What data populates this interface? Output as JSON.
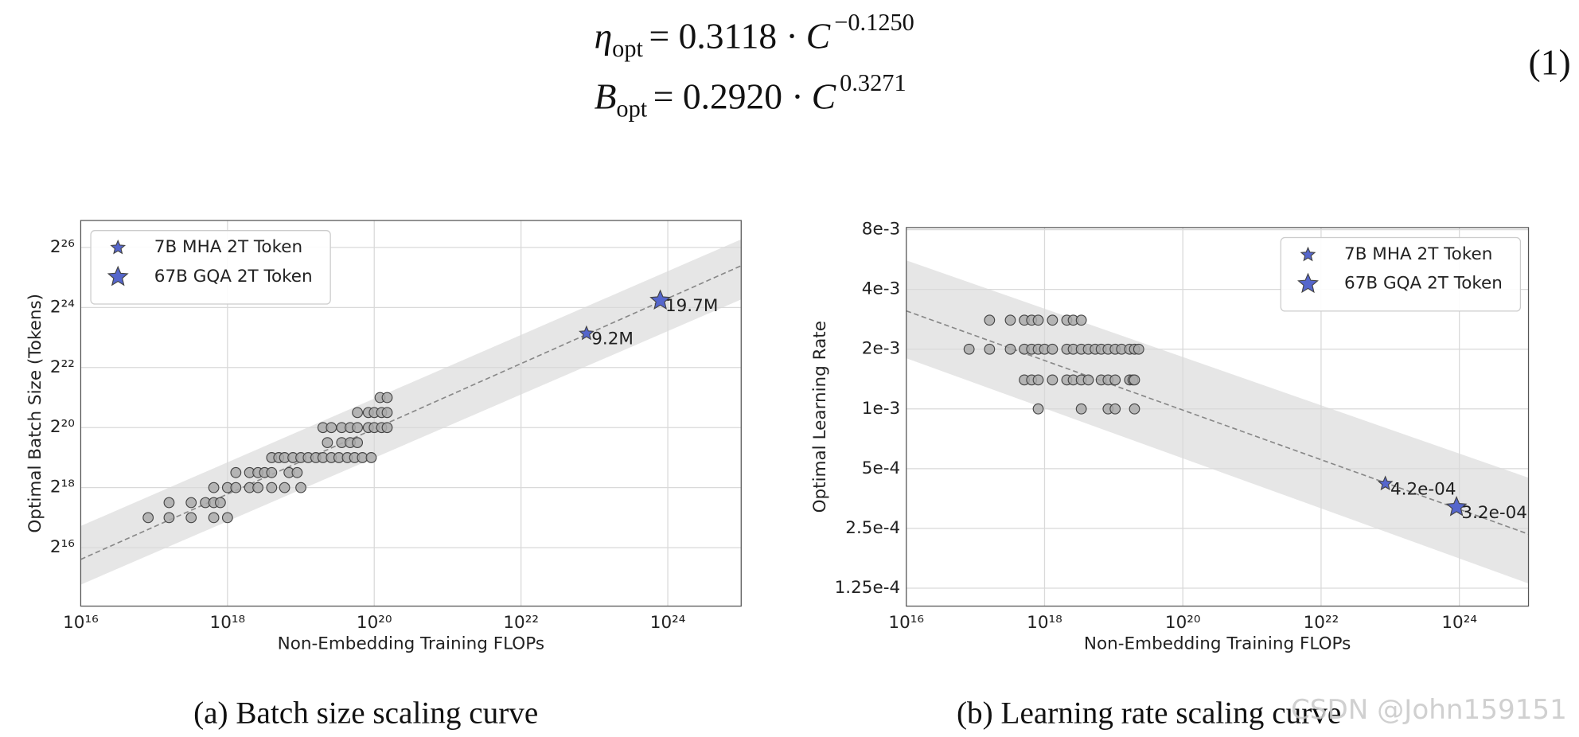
{
  "equations": [
    {
      "lhs": "η",
      "sub": "opt",
      "coef": "= 0.3118 ·",
      "var": "C",
      "exp": "−0.1250"
    },
    {
      "lhs": "B",
      "sub": "opt",
      "coef": "= 0.2920 ·",
      "var": "C",
      "exp": "0.3271"
    }
  ],
  "equation_number": "(1)",
  "chart_data": [
    {
      "type": "scatter",
      "xlabel": "Non-Embedding Training FLOPs",
      "ylabel": "Optimal Batch Size (Tokens)",
      "xscale": "log",
      "yscale": "log",
      "grid": true,
      "legend": "upper left",
      "xlim": [
        1e+16,
        1e+25
      ],
      "ylim": [
        17000,
        125000000
      ],
      "xticks": [
        {
          "value": 1e+16,
          "label": "10¹⁶"
        },
        {
          "value": 1e+18,
          "label": "10¹⁸"
        },
        {
          "value": 1e+20,
          "label": "10²⁰"
        },
        {
          "value": 1e+22,
          "label": "10²²"
        },
        {
          "value": 1e+24,
          "label": "10²⁴"
        }
      ],
      "yticks": [
        {
          "value": 65536,
          "label": "2¹⁶"
        },
        {
          "value": 262144,
          "label": "2¹⁸"
        },
        {
          "value": 1048576,
          "label": "2²⁰"
        },
        {
          "value": 4194304,
          "label": "2²²"
        },
        {
          "value": 16777216,
          "label": "2²⁴"
        },
        {
          "value": 67108864,
          "label": "2²⁶"
        }
      ],
      "band": {
        "color": "#e6e6e6",
        "x": [
          1e+16,
          1e+25
        ],
        "upper": [
          108000,
          80900000
        ],
        "lower": [
          27900,
          20200000
        ]
      },
      "fit": {
        "color": "#888888",
        "x": [
          1e+16,
          1e+25
        ],
        "y": [
          50000,
          44000000
        ]
      },
      "series": [
        {
          "color": "#aaaaaa",
          "marker": "circle",
          "marker_size": 5,
          "x": [
            8.3e+16,
            1.6e+17,
            3.2e+17,
            6.5e+17,
            1e+18,
            1.6e+17,
            3.2e+17,
            5e+17,
            6.5e+17,
            8e+17,
            6.5e+17,
            1e+18,
            1.3e+18,
            2e+18,
            2.6e+18,
            4e+18,
            6e+18,
            1e+19,
            1.3e+18,
            2e+18,
            2.6e+18,
            3.2e+18,
            4e+18,
            6.9e+18,
            8.9e+18,
            4e+18,
            5e+18,
            6e+18,
            7.8e+18,
            1e+19,
            1.26e+19,
            1.6e+19,
            2e+19,
            2.6e+19,
            3.3e+19,
            4.3e+19,
            5.4e+19,
            6.9e+19,
            9.1e+19,
            2.3e+19,
            3.6e+19,
            4.7e+19,
            5.9e+19,
            2e+19,
            2.6e+19,
            3.6e+19,
            4.7e+19,
            5.9e+19,
            8.3e+19,
            1e+20,
            1.26e+20,
            1.5e+20,
            5.9e+19,
            8.3e+19,
            1e+20,
            1.26e+20,
            1.5e+20,
            1.2e+20,
            1.5e+20
          ],
          "y": [
            131072,
            131072,
            131072,
            131072,
            131072,
            185364,
            185364,
            185364,
            185364,
            185364,
            262144,
            262144,
            262144,
            262144,
            262144,
            262144,
            262144,
            262144,
            370728,
            370728,
            370728,
            370728,
            370728,
            370728,
            370728,
            524288,
            524288,
            524288,
            524288,
            524288,
            524288,
            524288,
            524288,
            524288,
            524288,
            524288,
            524288,
            524288,
            524288,
            741455,
            741455,
            741455,
            741455,
            1048576,
            1048576,
            1048576,
            1048576,
            1048576,
            1048576,
            1048576,
            1048576,
            1048576,
            1482910,
            1482910,
            1482910,
            1482910,
            1482910,
            2097152,
            2097152
          ]
        },
        {
          "name": "7B MHA 2T Token",
          "color": "#5566cc",
          "marker": "star",
          "marker_size": 7,
          "x": [
            7.8e+22
          ],
          "y": [
            9200000
          ],
          "value_labels": [
            "9.2M"
          ]
        },
        {
          "name": "67B GQA 2T Token",
          "color": "#5566cc",
          "marker": "star",
          "marker_size": 10,
          "x": [
            7.9e+23
          ],
          "y": [
            19700000
          ],
          "value_labels": [
            "19.7M"
          ]
        }
      ]
    },
    {
      "type": "scatter",
      "xlabel": "Non-Embedding Training FLOPs",
      "ylabel": "Optimal Learning Rate",
      "xscale": "log",
      "yscale": "log",
      "grid": true,
      "legend": "upper right",
      "xlim": [
        1e+16,
        1e+25
      ],
      "ylim": [
        0.0001015,
        0.0082
      ],
      "xticks": [
        {
          "value": 1e+16,
          "label": "10¹⁶"
        },
        {
          "value": 1e+18,
          "label": "10¹⁸"
        },
        {
          "value": 1e+20,
          "label": "10²⁰"
        },
        {
          "value": 1e+22,
          "label": "10²²"
        },
        {
          "value": 1e+24,
          "label": "10²⁴"
        }
      ],
      "yticks": [
        {
          "value": 0.000125,
          "label": "1.25e-4"
        },
        {
          "value": 0.00025,
          "label": "2.5e-4"
        },
        {
          "value": 0.0005,
          "label": "5e-4"
        },
        {
          "value": 0.001,
          "label": "1e-3"
        },
        {
          "value": 0.002,
          "label": "2e-3"
        },
        {
          "value": 0.004,
          "label": "4e-3"
        },
        {
          "value": 0.008,
          "label": "8e-3"
        }
      ],
      "band": {
        "color": "#e6e6e6",
        "x": [
          1e+16,
          1e+25
        ],
        "upper": [
          0.0056,
          0.00045
        ],
        "lower": [
          0.0018,
          0.000132
        ]
      },
      "fit": {
        "color": "#888888",
        "x": [
          1e+16,
          1e+25
        ],
        "y": [
          0.003118,
          0.000234
        ]
      },
      "series": [
        {
          "color": "#aaaaaa",
          "marker": "circle",
          "marker_size": 5,
          "x": [
            1.6e+17,
            3.2e+17,
            5.1e+17,
            6.5e+17,
            8.1e+17,
            1.3e+18,
            2.1e+18,
            2.6e+18,
            3.4e+18,
            8.1e+16,
            1.6e+17,
            3.2e+17,
            5.1e+17,
            6.5e+17,
            8.1e+17,
            1e+18,
            1.3e+18,
            2.1e+18,
            2.6e+18,
            3.4e+18,
            4.3e+18,
            5.4e+18,
            6.6e+18,
            8.3e+18,
            1.05e+19,
            1.3e+19,
            1.7e+19,
            2e+19,
            2.3e+19,
            5.1e+17,
            6.5e+17,
            8.1e+17,
            1.3e+18,
            2.1e+18,
            2.6e+18,
            3.4e+18,
            4.3e+18,
            6.6e+18,
            8.3e+18,
            1.05e+19,
            1.7e+19,
            1.9e+19,
            2e+19,
            8.1e+17,
            3.4e+18,
            8.3e+18,
            1.05e+19,
            2e+19
          ],
          "y": [
            0.0028,
            0.0028,
            0.0028,
            0.0028,
            0.0028,
            0.0028,
            0.0028,
            0.0028,
            0.0028,
            0.002,
            0.002,
            0.002,
            0.002,
            0.002,
            0.002,
            0.002,
            0.002,
            0.002,
            0.002,
            0.002,
            0.002,
            0.002,
            0.002,
            0.002,
            0.002,
            0.002,
            0.002,
            0.002,
            0.002,
            0.0014,
            0.0014,
            0.0014,
            0.0014,
            0.0014,
            0.0014,
            0.0014,
            0.0014,
            0.0014,
            0.0014,
            0.0014,
            0.0014,
            0.0014,
            0.0014,
            0.001,
            0.001,
            0.001,
            0.001,
            0.001
          ]
        },
        {
          "name": "7B MHA 2T Token",
          "color": "#5566cc",
          "marker": "star",
          "marker_size": 7,
          "x": [
            8.5e+22
          ],
          "y": [
            0.00042
          ],
          "value_labels": [
            "4.2e-04"
          ]
        },
        {
          "name": "67B GQA 2T Token",
          "color": "#5566cc",
          "marker": "star",
          "marker_size": 10,
          "x": [
            9.1e+23
          ],
          "y": [
            0.00032
          ],
          "value_labels": [
            "3.2e-04"
          ]
        }
      ]
    }
  ],
  "captions": [
    "(a)  Batch size scaling curve",
    "(b)  Learning rate scaling curve"
  ],
  "watermark": "CSDN @John159151"
}
